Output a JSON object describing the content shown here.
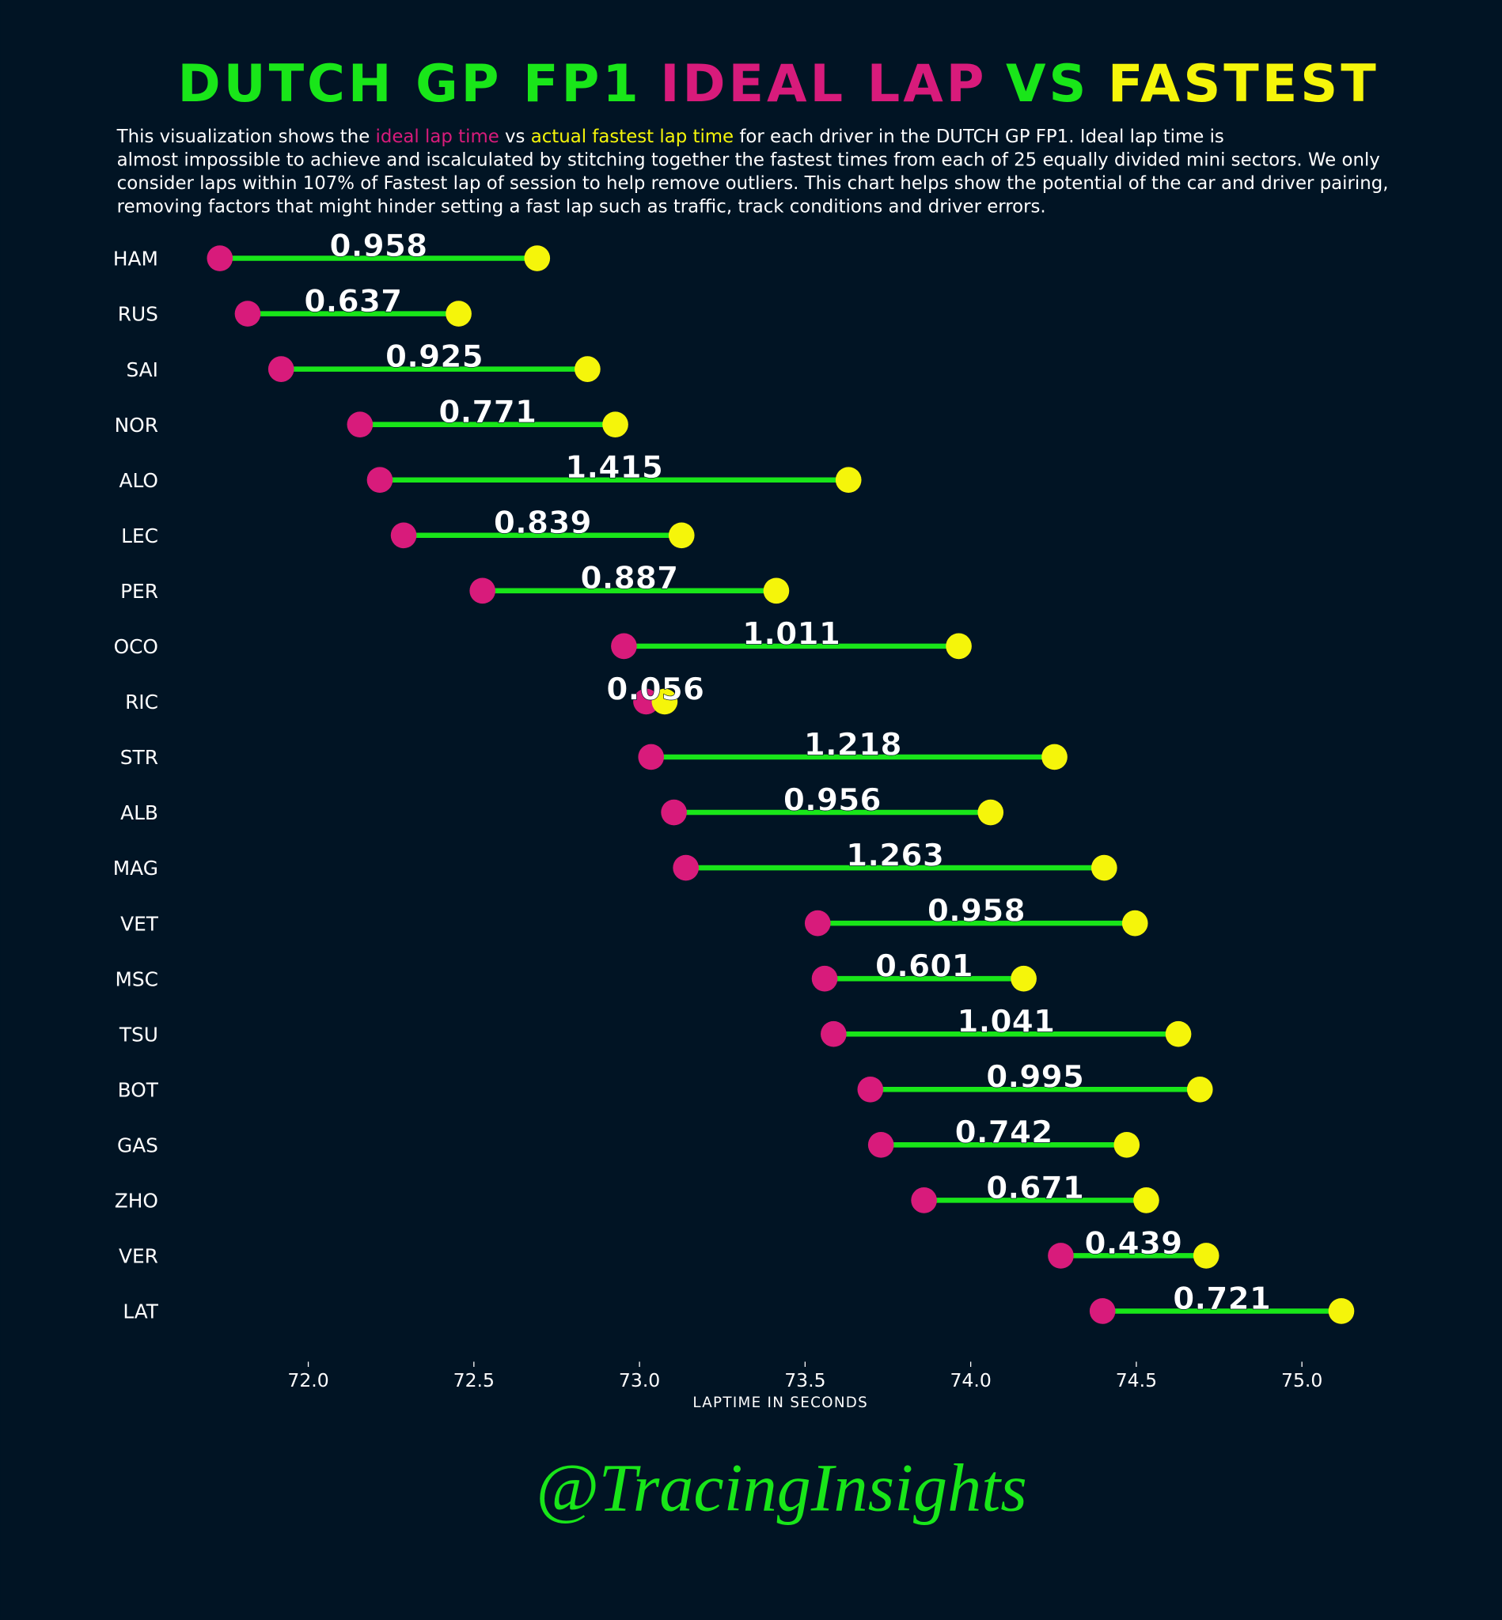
{
  "chart_data": {
    "type": "dumbbell",
    "title": [
      {
        "text": "DUTCH GP FP1",
        "color": "#19e619"
      },
      {
        "text": "IDEAL LAP",
        "color": "#d81b7b"
      },
      {
        "text": "VS",
        "color": "#19e619"
      },
      {
        "text": "FASTEST",
        "color": "#f5f50a"
      }
    ],
    "subtitle": [
      [
        {
          "text": "This visualization shows the ",
          "color": "#ffffff"
        },
        {
          "text": "ideal lap time",
          "color": "#d81b7b"
        },
        {
          "text": " vs ",
          "color": "#ffffff"
        },
        {
          "text": "actual fastest lap time",
          "color": "#f5f50a"
        },
        {
          "text": " for each driver in the DUTCH GP FP1. Ideal lap time is",
          "color": "#ffffff"
        }
      ],
      [
        {
          "text": "almost impossible to achieve and iscalculated by stitching together the fastest times from each of 25 equally divided mini sectors. We only",
          "color": "#ffffff"
        }
      ],
      [
        {
          "text": "consider laps within 107% of Fastest lap of session to help remove outliers. This chart helps show the potential of the car and driver pairing,",
          "color": "#ffffff"
        }
      ],
      [
        {
          "text": "removing factors that might hinder setting a fast lap such as traffic, track conditions and driver errors.",
          "color": "#ffffff"
        }
      ]
    ],
    "xlabel": "LAPTIME IN SECONDS",
    "footer": "@TracingInsights",
    "categories": [
      "HAM",
      "RUS",
      "SAI",
      "NOR",
      "ALO",
      "LEC",
      "PER",
      "OCO",
      "RIC",
      "STR",
      "ALB",
      "MAG",
      "VET",
      "MSC",
      "TSU",
      "BOT",
      "GAS",
      "ZHO",
      "VER",
      "LAT"
    ],
    "series": [
      {
        "name": "ideal lap time",
        "color": "#d81b7b",
        "values": [
          71.733,
          71.817,
          71.918,
          72.156,
          72.216,
          72.288,
          72.526,
          72.953,
          73.02,
          73.035,
          73.104,
          73.14,
          73.538,
          73.559,
          73.586,
          73.697,
          73.729,
          73.859,
          74.272,
          74.398
        ]
      },
      {
        "name": "actual fastest lap time",
        "color": "#f5f50a",
        "values": [
          72.691,
          72.454,
          72.843,
          72.927,
          73.631,
          73.127,
          73.413,
          73.964,
          73.076,
          74.253,
          74.06,
          74.403,
          74.496,
          74.16,
          74.627,
          74.692,
          74.471,
          74.53,
          74.711,
          75.119
        ]
      }
    ],
    "differences": [
      0.958,
      0.637,
      0.925,
      0.771,
      1.415,
      0.839,
      0.887,
      1.011,
      0.056,
      1.218,
      0.956,
      1.263,
      0.958,
      0.601,
      1.041,
      0.995,
      0.742,
      0.671,
      0.439,
      0.721
    ],
    "line_color": "#19e619",
    "xlim": [
      71.6,
      75.22
    ],
    "xticks": [
      {
        "value": 72,
        "label": "72.0"
      },
      {
        "value": 72.5,
        "label": "72.5"
      },
      {
        "value": 73,
        "label": "73.0"
      },
      {
        "value": 73.5,
        "label": "73.5"
      },
      {
        "value": 74,
        "label": "74.0"
      },
      {
        "value": 74.5,
        "label": "74.5"
      },
      {
        "value": 75,
        "label": "75.0"
      }
    ]
  }
}
